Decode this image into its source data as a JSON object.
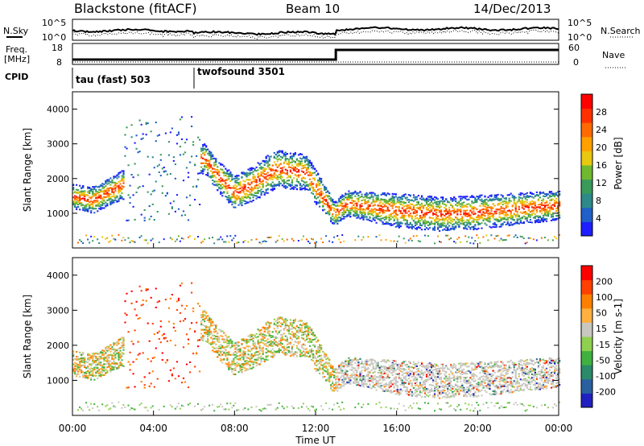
{
  "header": {
    "station": "Blackstone (fitACF)",
    "beam": "Beam 10",
    "date": "14/Dec/2013"
  },
  "status_panels": {
    "nsky_label": "N.Sky",
    "nsearch_label": "N.Search",
    "nsky_ticks": [
      "10^5",
      "10^0"
    ],
    "nsearch_ticks": [
      "10^5",
      "10^0"
    ],
    "freq_label": "Freq.",
    "freq_unit": "[MHz]",
    "freq_ticks": [
      "18",
      "8"
    ],
    "nave_label": "Nave",
    "nave_ticks": [
      "60",
      "0"
    ],
    "cpid_label": "CPID",
    "programs": [
      {
        "name": "tau (fast) 503",
        "start_hour": 0,
        "end_hour": 6
      },
      {
        "name": "twofsound 3501",
        "start_hour": 6,
        "end_hour": 24
      }
    ]
  },
  "chart_data": [
    {
      "type": "heatmap",
      "name": "power",
      "xlabel": "",
      "ylabel": "Slant Range [km]",
      "xlim": [
        0,
        24
      ],
      "ylim": [
        0,
        4500
      ],
      "y_ticks": [
        "1000",
        "2000",
        "3000",
        "4000"
      ],
      "colorbar": {
        "label": "Power [dB]",
        "ticks": [
          "4",
          "8",
          "12",
          "16",
          "20",
          "24",
          "28"
        ],
        "colors": [
          "#1e1eff",
          "#2060c8",
          "#2e8a8a",
          "#3a9a5a",
          "#70b830",
          "#e8c810",
          "#ffa000",
          "#ff6a00",
          "#ff3000",
          "#ff0000"
        ]
      },
      "band_center_km": [
        [
          0,
          1500
        ],
        [
          1,
          1400
        ],
        [
          2,
          1700
        ],
        [
          2.3,
          1800
        ],
        [
          6.5,
          2600
        ],
        [
          7,
          2200
        ],
        [
          8,
          1600
        ],
        [
          9,
          1900
        ],
        [
          10,
          2300
        ],
        [
          11.5,
          2200
        ],
        [
          12.9,
          1000
        ],
        [
          13.5,
          1300
        ],
        [
          16,
          1100
        ],
        [
          18,
          1000
        ],
        [
          20,
          1050
        ],
        [
          22,
          1150
        ],
        [
          24,
          1250
        ]
      ],
      "band_half_width_km": [
        [
          0,
          250
        ],
        [
          2.3,
          300
        ],
        [
          6.5,
          300
        ],
        [
          8,
          350
        ],
        [
          10,
          400
        ],
        [
          12,
          350
        ],
        [
          13,
          250
        ],
        [
          16,
          350
        ],
        [
          20,
          350
        ],
        [
          24,
          300
        ]
      ]
    },
    {
      "type": "heatmap",
      "name": "velocity",
      "xlabel": "Time UT",
      "ylabel": "Slant Range [km]",
      "xlim": [
        0,
        24
      ],
      "ylim": [
        0,
        4500
      ],
      "x_ticks": [
        "00:00",
        "04:00",
        "08:00",
        "12:00",
        "16:00",
        "20:00",
        "00:00"
      ],
      "y_ticks": [
        "1000",
        "2000",
        "3000",
        "4000"
      ],
      "colorbar": {
        "label": "Velocity [m s-1]",
        "ticks": [
          "200",
          "100",
          "50",
          "15",
          "-15",
          "-50",
          "-100",
          "-200"
        ],
        "colors": [
          "#2020c0",
          "#2a60a0",
          "#2a8a6a",
          "#40b040",
          "#90d050",
          "#c8c8c0",
          "#ffb040",
          "#ff8000",
          "#ff4000",
          "#ff0000"
        ]
      }
    }
  ]
}
